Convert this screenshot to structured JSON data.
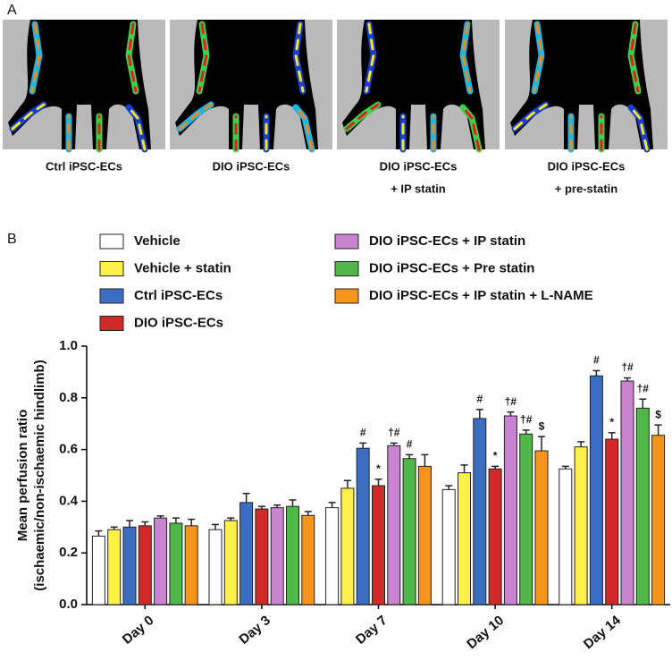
{
  "panel_a": {
    "label": "A",
    "captions": [
      [
        "Ctrl iPSC-ECs"
      ],
      [
        "DIO iPSC-ECs"
      ],
      [
        "DIO iPSC-ECs",
        "+ IP statin"
      ],
      [
        "DIO iPSC-ECs",
        "+ pre-statin"
      ]
    ]
  },
  "chart_data": {
    "type": "bar",
    "label": "B",
    "y_label": [
      "Mean perfusion  ratio",
      "(ischaemic/non-ischaemic hindlimb)"
    ],
    "categories": [
      "Day 0",
      "Day 3",
      "Day 7",
      "Day 10",
      "Day 14"
    ],
    "ylim": [
      0,
      1.0
    ],
    "yticks": [
      {
        "value": 0,
        "label": "0.0"
      },
      0.2,
      0.4,
      0.6,
      0.8,
      {
        "value": 1.0,
        "label": "1.0"
      }
    ],
    "series": [
      {
        "name": "Vehicle",
        "color": "#ffffff",
        "values": [
          0.265,
          0.29,
          0.375,
          0.445,
          0.525
        ],
        "errors": [
          0.02,
          0.02,
          0.02,
          0.015,
          0.01
        ],
        "annotations": [
          null,
          null,
          null,
          null,
          null
        ]
      },
      {
        "name": "Vehicle + statin",
        "color": "#fff04a",
        "values": [
          0.29,
          0.325,
          0.45,
          0.51,
          0.61
        ],
        "errors": [
          0.01,
          0.01,
          0.03,
          0.03,
          0.02
        ],
        "annotations": [
          null,
          null,
          null,
          null,
          null
        ]
      },
      {
        "name": "Ctrl iPSC-ECs",
        "color": "#3b6ec2",
        "values": [
          0.3,
          0.395,
          0.605,
          0.72,
          0.885
        ],
        "errors": [
          0.025,
          0.035,
          0.02,
          0.035,
          0.02
        ],
        "annotations": [
          null,
          null,
          "#",
          "#",
          "#"
        ]
      },
      {
        "name": "DIO iPSC-ECs",
        "color": "#d22a2a",
        "values": [
          0.305,
          0.37,
          0.46,
          0.525,
          0.64
        ],
        "errors": [
          0.015,
          0.01,
          0.025,
          0.01,
          0.025
        ],
        "annotations": [
          null,
          null,
          "*",
          "*",
          "*"
        ]
      },
      {
        "name": "DIO iPSC-ECs + IP statin",
        "color": "#c983d0",
        "values": [
          0.335,
          0.375,
          0.615,
          0.73,
          0.865
        ],
        "errors": [
          0.008,
          0.01,
          0.01,
          0.015,
          0.012
        ],
        "annotations": [
          null,
          null,
          "†#",
          "†#",
          "†#"
        ]
      },
      {
        "name": "DIO iPSC-ECs + Pre statin",
        "color": "#4fb848",
        "values": [
          0.315,
          0.38,
          0.565,
          0.66,
          0.76
        ],
        "errors": [
          0.02,
          0.025,
          0.015,
          0.015,
          0.035
        ],
        "annotations": [
          null,
          null,
          "#",
          "†#",
          "†#"
        ]
      },
      {
        "name": "DIO iPSC-ECs + IP  statin + L-NAME",
        "color": "#f7941d",
        "values": [
          0.305,
          0.345,
          0.535,
          0.595,
          0.655
        ],
        "errors": [
          0.025,
          0.015,
          0.045,
          0.055,
          0.04
        ],
        "annotations": [
          null,
          null,
          null,
          "$",
          "$"
        ]
      }
    ]
  }
}
